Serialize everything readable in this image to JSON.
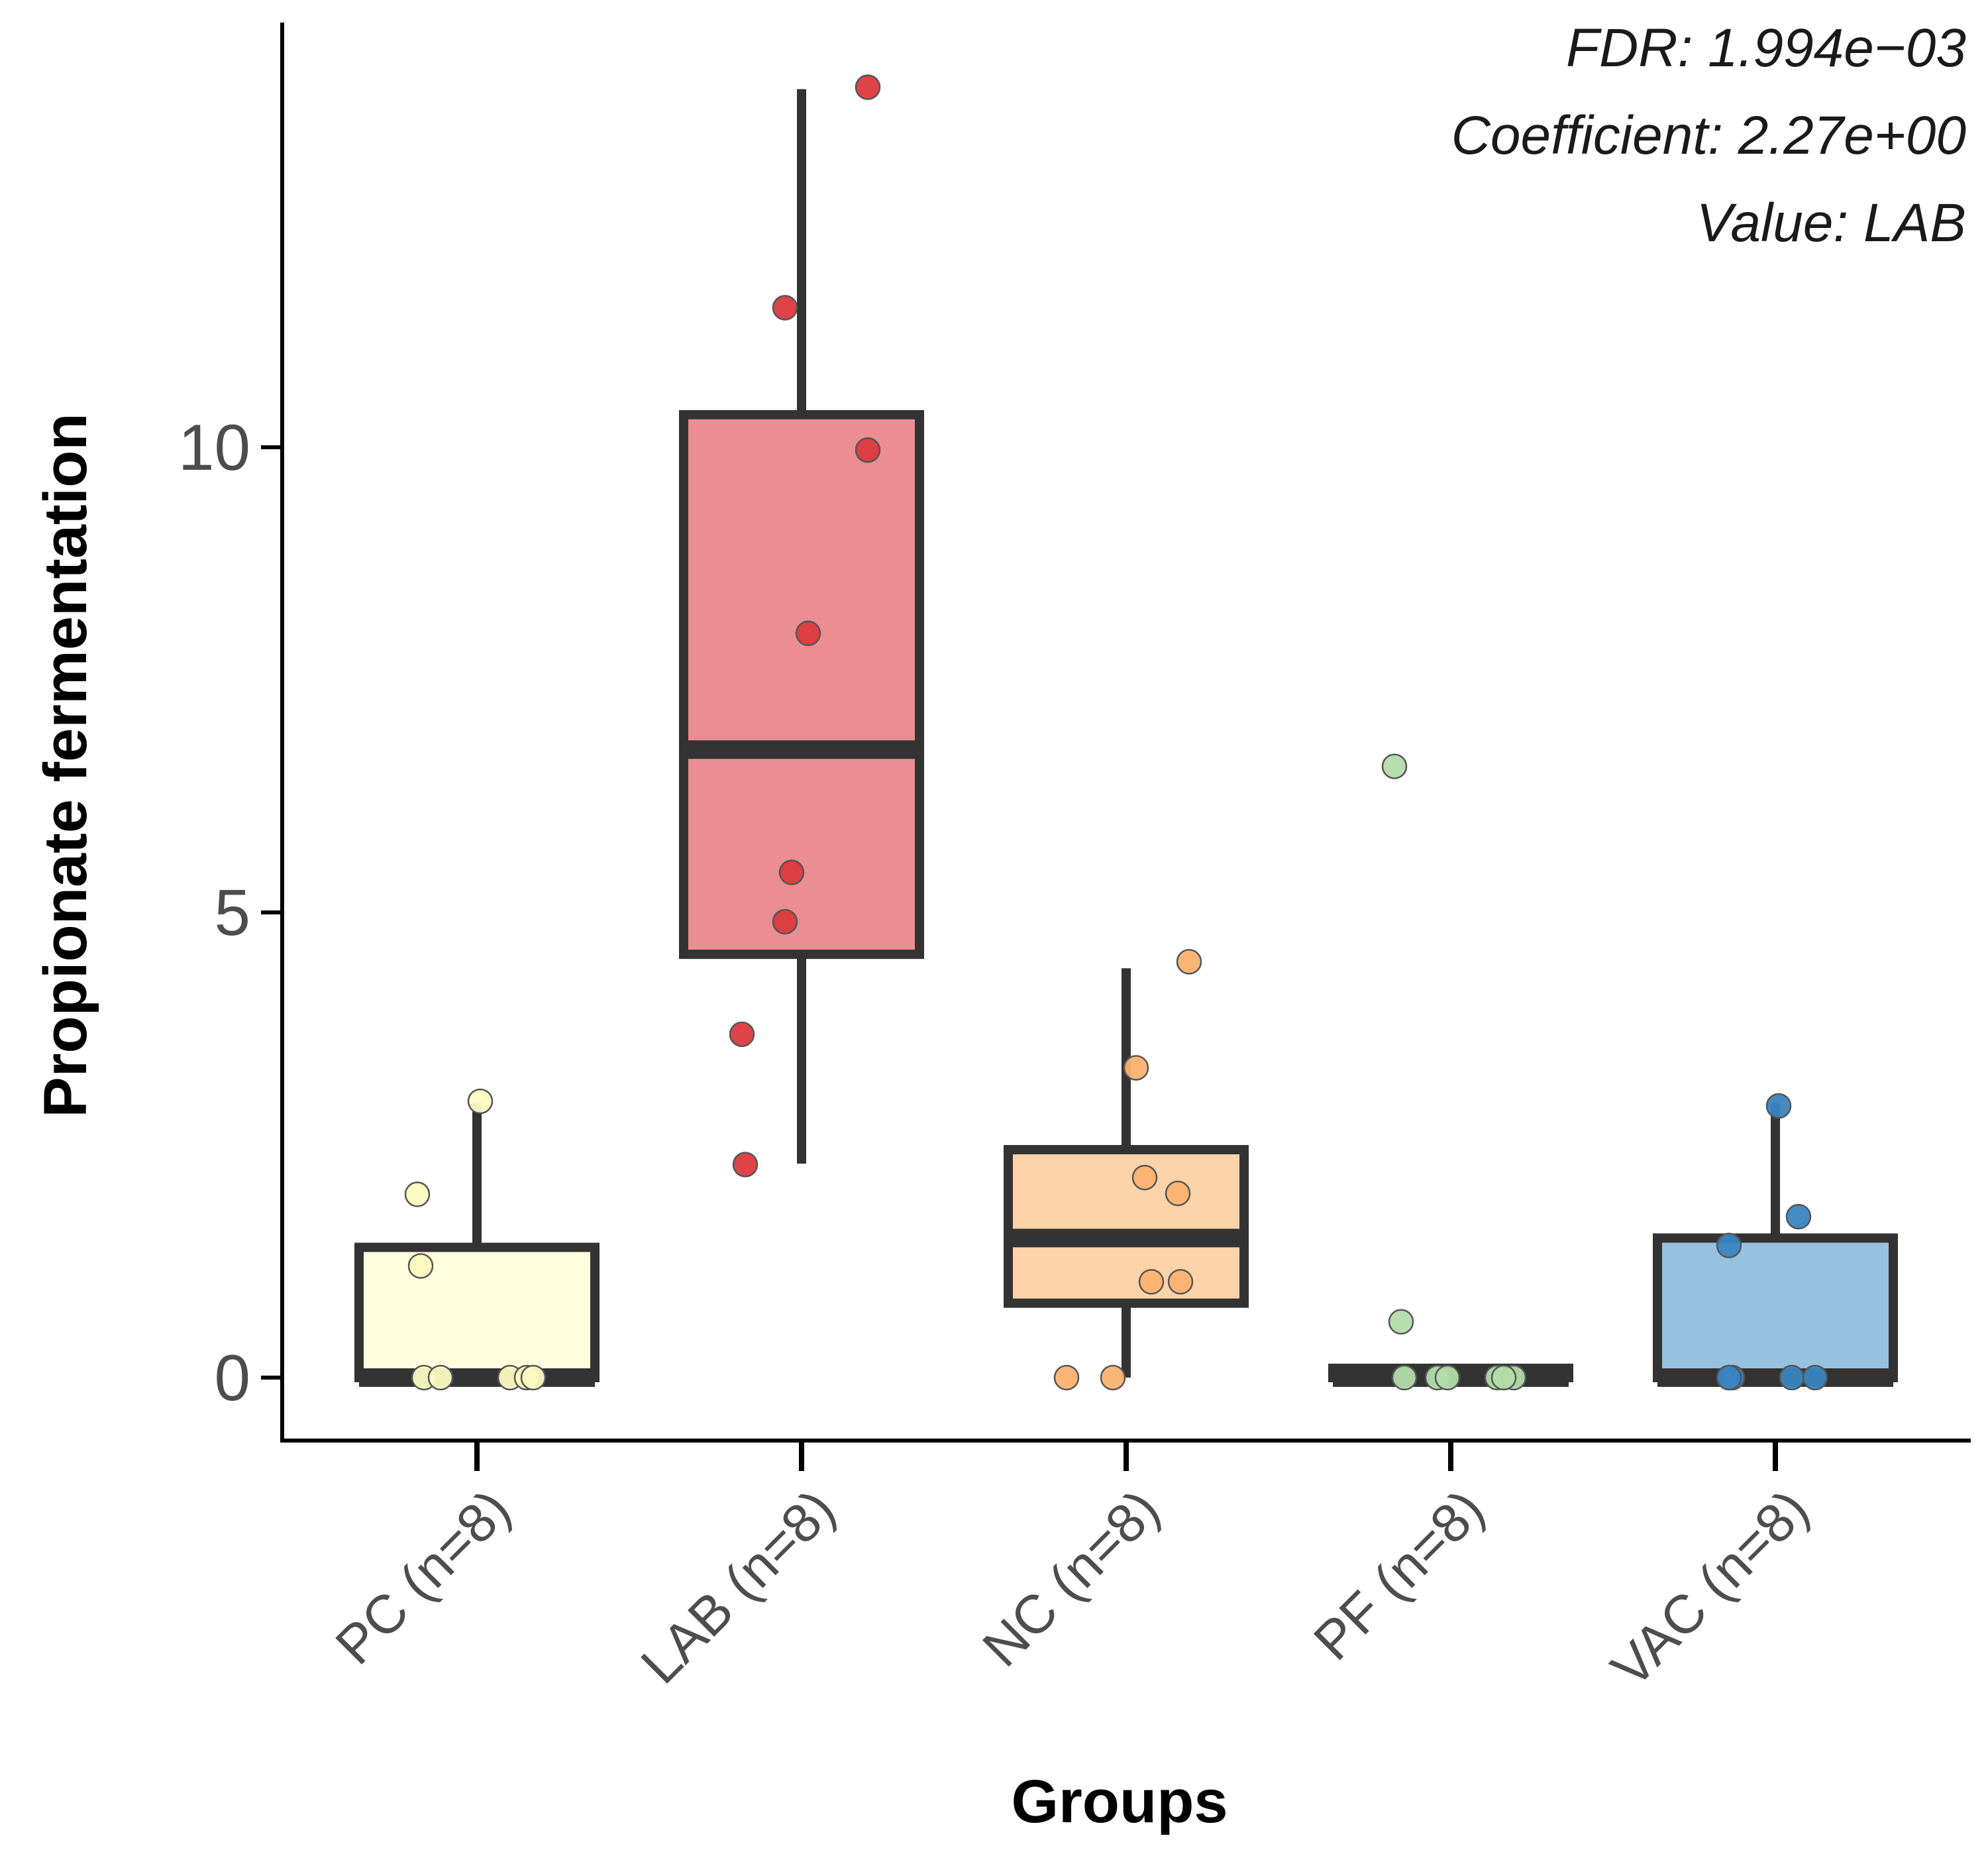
{
  "chart_data": {
    "type": "box",
    "title": "",
    "xlabel": "Groups",
    "ylabel": "Propionate fermentation",
    "ylim": [
      -0.7,
      15.0
    ],
    "yticks": [
      0,
      5,
      10
    ],
    "annotations": [
      "FDR: 1.994e−03",
      "Coefficient: 2.27e+00",
      "Value: LAB"
    ],
    "groups": [
      {
        "name": "PC (n=8)",
        "color": "#ffffdf",
        "point_color": "#fbfbc0",
        "q1": 0,
        "median": 0,
        "q3": 1.4,
        "whisker_low": 0,
        "whisker_high": 2.95,
        "points": [
          0,
          0,
          0,
          0,
          0,
          1.2,
          1.97,
          2.97
        ]
      },
      {
        "name": "LAB (n=8)",
        "color": "#eb8e91",
        "point_color": "#dc3a3d",
        "q1": 4.55,
        "median": 6.75,
        "q3": 10.35,
        "whisker_low": 2.3,
        "whisker_high": 13.85,
        "points": [
          2.29,
          3.69,
          4.9,
          5.43,
          8.0,
          9.97,
          11.5,
          13.87
        ]
      },
      {
        "name": "NC (n=8)",
        "color": "#fdd4aa",
        "point_color": "#fbb270",
        "q1": 0.8,
        "median": 1.5,
        "q3": 2.45,
        "whisker_low": 0,
        "whisker_high": 4.4,
        "points": [
          0,
          0,
          1.03,
          1.03,
          1.98,
          2.15,
          3.33,
          4.47
        ]
      },
      {
        "name": "PF (n=8)",
        "color": "#c8e6c3",
        "point_color": "#b3dca9",
        "q1": 0,
        "median": 0,
        "q3": 0.1,
        "whisker_low": 0,
        "whisker_high": 0.1,
        "points": [
          0,
          0,
          0,
          0,
          0,
          0,
          0.6,
          6.57
        ]
      },
      {
        "name": "VAC (n=8)",
        "color": "#96c2df",
        "point_color": "#3a85c1",
        "q1": 0,
        "median": 0,
        "q3": 1.5,
        "whisker_low": 0,
        "whisker_high": 2.95,
        "points": [
          0,
          0,
          0,
          0,
          0,
          1.42,
          1.73,
          2.92
        ]
      }
    ]
  }
}
